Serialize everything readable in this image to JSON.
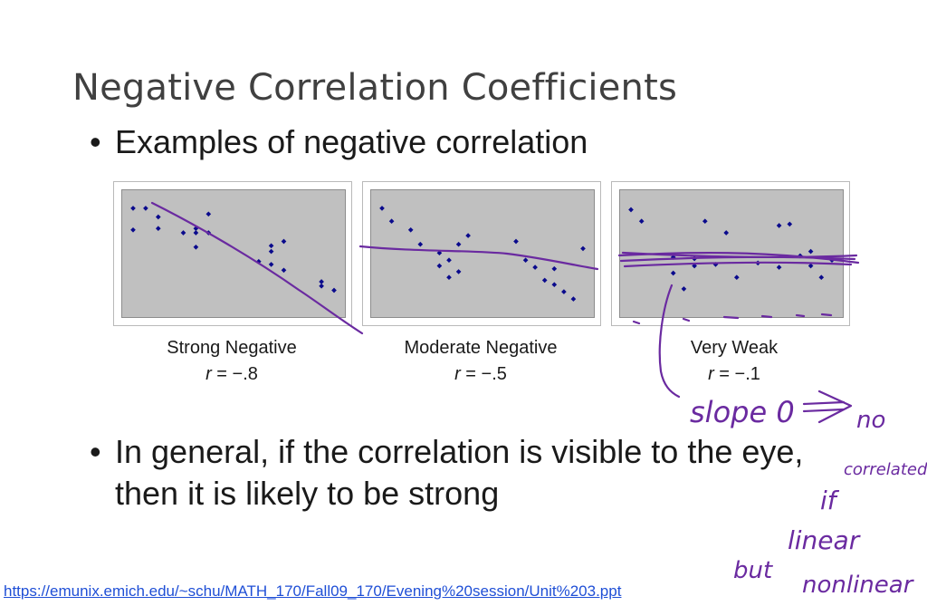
{
  "slide": {
    "title": "Negative Correlation Coefficients",
    "bullet_1": "Examples of negative correlation",
    "bullet_2": "In general, if the correlation is visible to the eye, then it is likely to be strong",
    "bullet_marker": "•",
    "source_url": "https://emunix.emich.edu/~schu/MATH_170/Fall09_170/Evening%20session/Unit%203.ppt"
  },
  "chart_data": [
    {
      "type": "scatter",
      "caption": "Strong Negative",
      "r_symbol": "r",
      "r_value": " = −.8",
      "point_color": "#0a0a8c",
      "x": [
        1,
        2,
        1,
        3,
        3,
        5,
        6,
        6,
        7,
        6,
        7,
        11,
        12,
        13,
        12,
        12,
        13,
        16,
        16,
        17
      ],
      "y": [
        9.3,
        9.3,
        7.8,
        8.7,
        7.9,
        7.6,
        7.9,
        7.6,
        7.6,
        6.6,
        8.9,
        5.6,
        5.4,
        5.0,
        6.3,
        6.7,
        7.0,
        3.9,
        4.2,
        3.6
      ]
    },
    {
      "type": "scatter",
      "caption": "Moderate Negative",
      "r_symbol": "r",
      "r_value": " = −.5",
      "point_color": "#0a0a8c",
      "x": [
        1,
        2,
        4,
        5,
        7,
        7,
        8,
        8,
        9,
        9,
        10,
        15,
        16,
        17,
        18,
        19,
        19,
        20,
        21,
        22
      ],
      "y": [
        9.3,
        8.4,
        7.8,
        6.8,
        6.2,
        5.3,
        5.7,
        4.5,
        4.9,
        6.8,
        7.4,
        7.0,
        5.7,
        5.2,
        4.3,
        4.0,
        5.1,
        3.5,
        3.0,
        6.5
      ]
    },
    {
      "type": "scatter",
      "caption": "Very Weak",
      "r_symbol": "r",
      "r_value": " = −.1",
      "point_color": "#0a0a8c",
      "x": [
        1,
        2,
        5,
        5,
        6,
        7,
        7,
        8,
        9,
        10,
        11,
        13,
        15,
        15,
        16,
        17,
        18,
        18,
        19,
        20
      ],
      "y": [
        9.2,
        8.4,
        5.9,
        4.8,
        3.7,
        5.8,
        5.3,
        8.4,
        5.4,
        7.6,
        4.5,
        5.5,
        8.1,
        5.2,
        8.2,
        6.0,
        5.3,
        6.3,
        4.5,
        5.7
      ]
    }
  ],
  "annotations": {
    "slope_note": "slope 0",
    "no_note": "no",
    "correlated_note": "correlated",
    "if_note": "if",
    "linear_note": "linear",
    "but_note": "but",
    "nonlinear_note": "nonlinear"
  }
}
